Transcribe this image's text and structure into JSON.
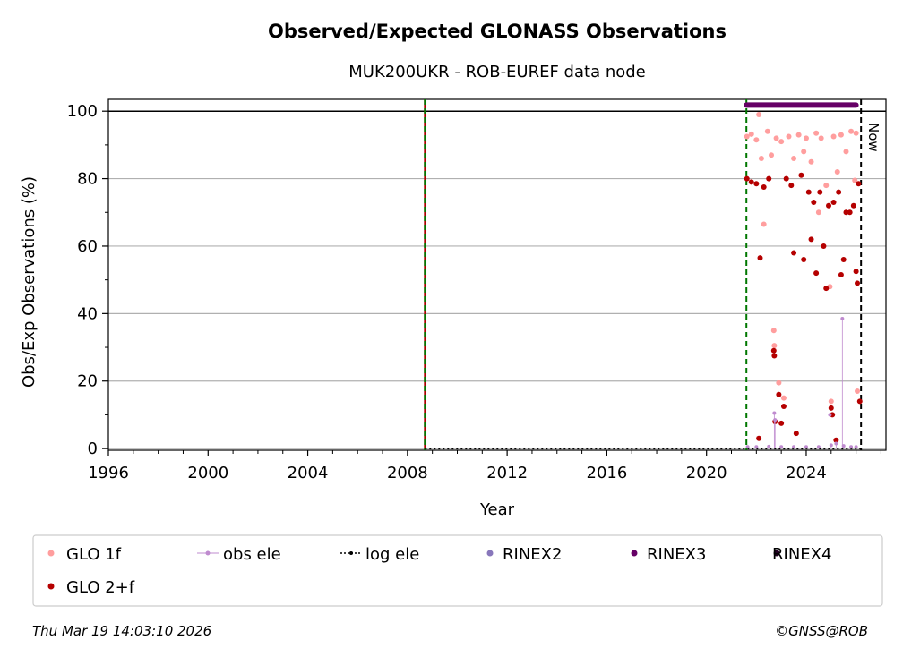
{
  "chart_data": {
    "type": "scatter",
    "title": "Observed/Expected GLONASS Observations",
    "subtitle": "MUK200UKR - ROB-EUREF data node",
    "xlabel": "Year",
    "ylabel": "Obs/Exp Observations (%)",
    "xlim": [
      1996,
      2027.2
    ],
    "ylim": [
      -0.5,
      103.5
    ],
    "x_ticks": [
      "1996",
      "2000",
      "2004",
      "2008",
      "2012",
      "2016",
      "2020",
      "2024"
    ],
    "y_ticks": [
      "0",
      "20",
      "40",
      "60",
      "80",
      "100"
    ],
    "grid": "horizontal",
    "legend_placement": "bottom",
    "vertical_lines": [
      {
        "x": 2008.7,
        "color": "#aa0000",
        "style": "solid"
      },
      {
        "x": 2008.7,
        "color": "#007700",
        "style": "dashed"
      },
      {
        "x": 2021.6,
        "color": "#007700",
        "style": "dashed"
      },
      {
        "x": 2026.2,
        "color": "#000000",
        "style": "dashed",
        "label": "Now"
      }
    ],
    "reference_line": {
      "y": 100,
      "color": "#000000"
    },
    "log_ele": {
      "x_start": 2008.7,
      "x_end": 2026.2,
      "y": 0
    },
    "rinex3_bar": {
      "x_start": 2021.6,
      "x_end": 2026.0,
      "y": 101.8
    },
    "series": [
      {
        "name": "GLO 1f",
        "color": "#ff9e9e",
        "points": [
          [
            2021.62,
            92.5
          ],
          [
            2021.8,
            93.2
          ],
          [
            2022.0,
            91.5
          ],
          [
            2022.1,
            99.0
          ],
          [
            2022.2,
            86.0
          ],
          [
            2022.3,
            66.5
          ],
          [
            2022.45,
            94.0
          ],
          [
            2022.6,
            87.0
          ],
          [
            2022.7,
            35.0
          ],
          [
            2022.72,
            30.5
          ],
          [
            2022.8,
            92.0
          ],
          [
            2022.9,
            19.5
          ],
          [
            2023.0,
            91.0
          ],
          [
            2023.1,
            15.0
          ],
          [
            2023.3,
            92.5
          ],
          [
            2023.5,
            86.0
          ],
          [
            2023.7,
            93.0
          ],
          [
            2023.9,
            88.0
          ],
          [
            2024.0,
            92.0
          ],
          [
            2024.2,
            85.0
          ],
          [
            2024.4,
            93.5
          ],
          [
            2024.5,
            70.0
          ],
          [
            2024.6,
            92.0
          ],
          [
            2024.8,
            78.0
          ],
          [
            2024.95,
            48.0
          ],
          [
            2025.0,
            14.0
          ],
          [
            2025.1,
            92.5
          ],
          [
            2025.25,
            82.0
          ],
          [
            2025.4,
            93.0
          ],
          [
            2025.6,
            88.0
          ],
          [
            2025.8,
            94.0
          ],
          [
            2025.95,
            79.5
          ],
          [
            2026.0,
            93.5
          ],
          [
            2026.05,
            17.0
          ]
        ]
      },
      {
        "name": "GLO 2+f",
        "color": "#b50000",
        "points": [
          [
            2021.62,
            80.0
          ],
          [
            2021.8,
            79.0
          ],
          [
            2022.0,
            78.5
          ],
          [
            2022.1,
            3.0
          ],
          [
            2022.15,
            56.5
          ],
          [
            2022.3,
            77.5
          ],
          [
            2022.5,
            80.0
          ],
          [
            2022.7,
            29.0
          ],
          [
            2022.72,
            27.5
          ],
          [
            2022.75,
            8.0
          ],
          [
            2022.9,
            16.0
          ],
          [
            2023.0,
            7.5
          ],
          [
            2023.1,
            12.5
          ],
          [
            2023.2,
            80.0
          ],
          [
            2023.4,
            78.0
          ],
          [
            2023.5,
            58.0
          ],
          [
            2023.6,
            4.5
          ],
          [
            2023.8,
            81.0
          ],
          [
            2023.9,
            56.0
          ],
          [
            2024.1,
            76.0
          ],
          [
            2024.2,
            62.0
          ],
          [
            2024.3,
            73.0
          ],
          [
            2024.4,
            52.0
          ],
          [
            2024.55,
            76.0
          ],
          [
            2024.7,
            60.0
          ],
          [
            2024.8,
            47.5
          ],
          [
            2024.9,
            72.0
          ],
          [
            2025.0,
            12.0
          ],
          [
            2025.05,
            10.0
          ],
          [
            2025.1,
            73.0
          ],
          [
            2025.2,
            2.5
          ],
          [
            2025.3,
            76.0
          ],
          [
            2025.4,
            51.5
          ],
          [
            2025.5,
            56.0
          ],
          [
            2025.6,
            70.0
          ],
          [
            2025.75,
            70.0
          ],
          [
            2025.9,
            72.0
          ],
          [
            2026.0,
            52.5
          ],
          [
            2026.05,
            49.0
          ],
          [
            2026.1,
            78.5
          ],
          [
            2026.15,
            14.0
          ]
        ]
      },
      {
        "name": "obs ele",
        "color": "#bf8bcf",
        "points": [
          [
            2021.65,
            0.5
          ],
          [
            2022.0,
            0.5
          ],
          [
            2022.5,
            0.6
          ],
          [
            2022.72,
            10.5
          ],
          [
            2022.75,
            8.5
          ],
          [
            2023.0,
            0.5
          ],
          [
            2023.5,
            0.5
          ],
          [
            2024.0,
            0.5
          ],
          [
            2024.5,
            0.5
          ],
          [
            2024.95,
            10.0
          ],
          [
            2025.0,
            1.0
          ],
          [
            2025.2,
            1.5
          ],
          [
            2025.45,
            38.5
          ],
          [
            2025.5,
            0.8
          ],
          [
            2025.8,
            0.5
          ],
          [
            2026.0,
            0.5
          ]
        ]
      },
      {
        "name": "log ele",
        "color": "#000000",
        "points": []
      },
      {
        "name": "RINEX2",
        "color": "#8877bb",
        "points": []
      },
      {
        "name": "RINEX3",
        "color": "#660066",
        "points": []
      },
      {
        "name": "RINEX4",
        "color": "#220022",
        "points": []
      }
    ]
  },
  "footer": {
    "timestamp": "Thu Mar 19 14:03:10 2026",
    "copyright": "©GNSS@ROB"
  }
}
